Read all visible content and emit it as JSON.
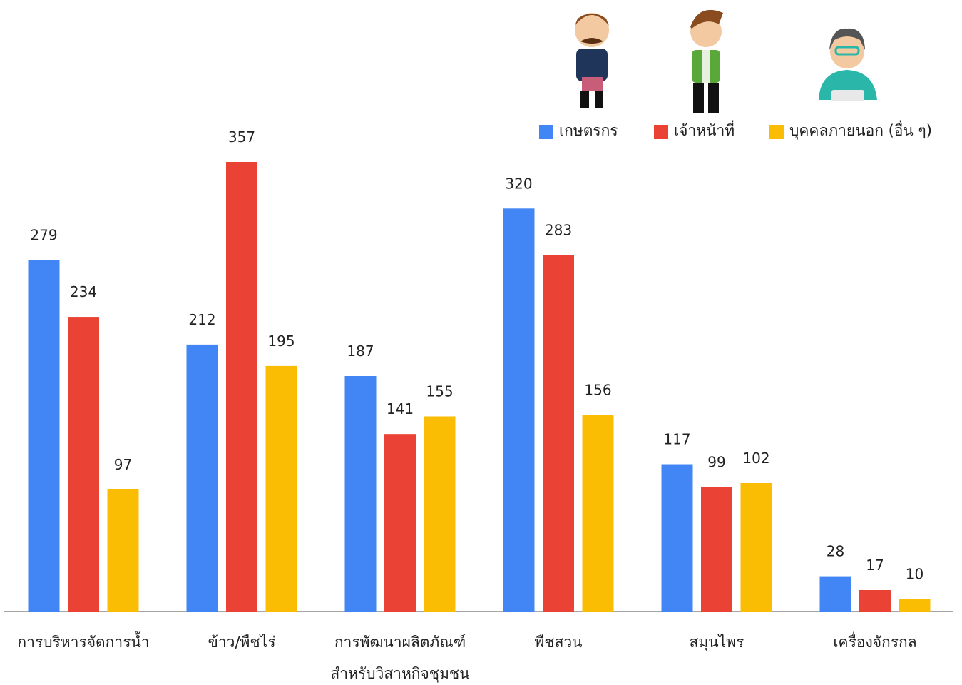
{
  "chart_data": {
    "type": "bar",
    "categories": [
      "การบริหารจัดการน้ำ",
      "ข้าว/พืชไร่",
      "การพัฒนาผลิตภัณฑ์\nสำหรับวิสาหกิจชุมชน",
      "พืชสวน",
      "สมุนไพร",
      "เครื่องจักรกล"
    ],
    "series": [
      {
        "name": "เกษตรกร",
        "color": "#4285f4",
        "values": [
          279,
          212,
          187,
          320,
          117,
          28
        ]
      },
      {
        "name": "เจ้าหน้าที่",
        "color": "#ea4335",
        "values": [
          234,
          357,
          141,
          283,
          99,
          17
        ]
      },
      {
        "name": "บุคคลภายนอก (อื่น ๆ)",
        "color": "#fbbc04",
        "values": [
          97,
          195,
          155,
          156,
          102,
          10
        ]
      }
    ],
    "legend": "top-right"
  }
}
